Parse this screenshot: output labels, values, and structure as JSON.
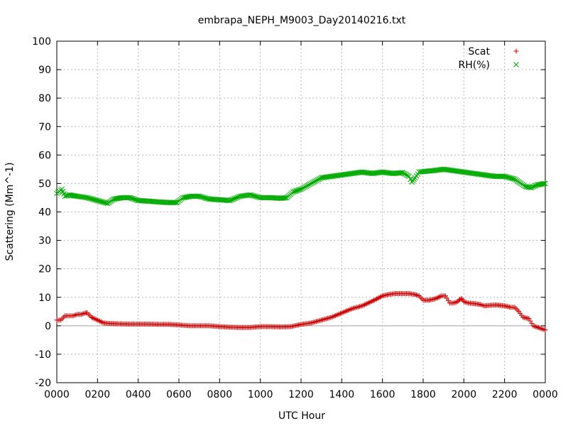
{
  "chart_data": {
    "type": "scatter",
    "title": "embrapa_NEPH_M9003_Day20140216.txt",
    "xlabel": "UTC Hour",
    "ylabel": "Scattering (Mm^-1)",
    "xlim": [
      0,
      24
    ],
    "ylim": [
      -20,
      100
    ],
    "grid": true,
    "legend_position": "top-right",
    "x_ticks": [
      {
        "value": 0,
        "label": "0000"
      },
      {
        "value": 2,
        "label": "0200"
      },
      {
        "value": 4,
        "label": "0400"
      },
      {
        "value": 6,
        "label": "0600"
      },
      {
        "value": 8,
        "label": "0800"
      },
      {
        "value": 10,
        "label": "1000"
      },
      {
        "value": 12,
        "label": "1200"
      },
      {
        "value": 14,
        "label": "1400"
      },
      {
        "value": 16,
        "label": "1600"
      },
      {
        "value": 18,
        "label": "1800"
      },
      {
        "value": 20,
        "label": "2000"
      },
      {
        "value": 22,
        "label": "2200"
      },
      {
        "value": 24,
        "label": "0000"
      }
    ],
    "y_ticks": [
      -20,
      -10,
      0,
      10,
      20,
      30,
      40,
      50,
      60,
      70,
      80,
      90,
      100
    ],
    "series": [
      {
        "name": "Scat",
        "marker": "plus",
        "color": "#cc0000",
        "points": [
          [
            0.0,
            2.0
          ],
          [
            0.2,
            2.0
          ],
          [
            0.4,
            3.5
          ],
          [
            0.6,
            3.5
          ],
          [
            0.8,
            3.5
          ],
          [
            1.0,
            4.0
          ],
          [
            1.2,
            4.0
          ],
          [
            1.4,
            4.5
          ],
          [
            1.5,
            4.5
          ],
          [
            1.7,
            3.0
          ],
          [
            2.0,
            2.0
          ],
          [
            2.3,
            1.0
          ],
          [
            2.6,
            0.8
          ],
          [
            3.0,
            0.7
          ],
          [
            3.5,
            0.6
          ],
          [
            4.0,
            0.6
          ],
          [
            4.5,
            0.6
          ],
          [
            5.0,
            0.5
          ],
          [
            5.5,
            0.5
          ],
          [
            6.0,
            0.3
          ],
          [
            6.5,
            0.0
          ],
          [
            7.0,
            0.0
          ],
          [
            7.5,
            0.0
          ],
          [
            8.0,
            -0.3
          ],
          [
            8.5,
            -0.5
          ],
          [
            9.0,
            -0.6
          ],
          [
            9.5,
            -0.6
          ],
          [
            10.0,
            -0.3
          ],
          [
            10.5,
            -0.3
          ],
          [
            11.0,
            -0.4
          ],
          [
            11.5,
            -0.3
          ],
          [
            12.0,
            0.5
          ],
          [
            12.5,
            1.0
          ],
          [
            13.0,
            2.0
          ],
          [
            13.5,
            3.0
          ],
          [
            14.0,
            4.5
          ],
          [
            14.5,
            6.0
          ],
          [
            15.0,
            7.0
          ],
          [
            15.3,
            8.0
          ],
          [
            15.6,
            9.0
          ],
          [
            16.0,
            10.5
          ],
          [
            16.3,
            11.0
          ],
          [
            16.6,
            11.3
          ],
          [
            17.0,
            11.3
          ],
          [
            17.3,
            11.3
          ],
          [
            17.6,
            11.0
          ],
          [
            17.8,
            10.5
          ],
          [
            18.0,
            9.0
          ],
          [
            18.3,
            9.0
          ],
          [
            18.6,
            9.5
          ],
          [
            18.9,
            10.5
          ],
          [
            19.1,
            10.5
          ],
          [
            19.3,
            8.0
          ],
          [
            19.5,
            8.0
          ],
          [
            19.7,
            8.5
          ],
          [
            19.8,
            9.3
          ],
          [
            19.9,
            9.5
          ],
          [
            20.0,
            8.5
          ],
          [
            20.2,
            8.0
          ],
          [
            20.5,
            7.8
          ],
          [
            20.8,
            7.5
          ],
          [
            21.0,
            7.0
          ],
          [
            21.3,
            7.2
          ],
          [
            21.6,
            7.3
          ],
          [
            22.0,
            7.0
          ],
          [
            22.3,
            6.5
          ],
          [
            22.5,
            6.5
          ],
          [
            22.7,
            5.0
          ],
          [
            22.9,
            3.0
          ],
          [
            23.2,
            2.5
          ],
          [
            23.4,
            0.0
          ],
          [
            23.6,
            -0.5
          ],
          [
            23.8,
            -1.0
          ],
          [
            24.0,
            -1.5
          ]
        ]
      },
      {
        "name": "RH(%)",
        "marker": "cross",
        "color": "#00aa00",
        "points": [
          [
            0.0,
            46.5
          ],
          [
            0.25,
            48.0
          ],
          [
            0.4,
            45.5
          ],
          [
            0.6,
            46.0
          ],
          [
            1.0,
            45.5
          ],
          [
            1.5,
            45.0
          ],
          [
            2.0,
            44.0
          ],
          [
            2.5,
            43.0
          ],
          [
            2.8,
            44.5
          ],
          [
            3.2,
            45.0
          ],
          [
            3.6,
            45.0
          ],
          [
            4.0,
            44.0
          ],
          [
            4.5,
            43.8
          ],
          [
            5.0,
            43.5
          ],
          [
            5.5,
            43.3
          ],
          [
            5.9,
            43.3
          ],
          [
            6.2,
            45.0
          ],
          [
            6.6,
            45.5
          ],
          [
            7.0,
            45.5
          ],
          [
            7.5,
            44.5
          ],
          [
            8.0,
            44.3
          ],
          [
            8.5,
            44.0
          ],
          [
            9.0,
            45.5
          ],
          [
            9.5,
            46.0
          ],
          [
            10.0,
            45.0
          ],
          [
            10.5,
            45.0
          ],
          [
            11.0,
            44.8
          ],
          [
            11.3,
            45.0
          ],
          [
            11.6,
            47.0
          ],
          [
            12.0,
            48.0
          ],
          [
            12.5,
            50.0
          ],
          [
            13.0,
            52.0
          ],
          [
            13.5,
            52.5
          ],
          [
            14.0,
            53.0
          ],
          [
            14.5,
            53.5
          ],
          [
            15.0,
            54.0
          ],
          [
            15.5,
            53.5
          ],
          [
            16.0,
            54.0
          ],
          [
            16.5,
            53.5
          ],
          [
            17.0,
            53.8
          ],
          [
            17.3,
            52.5
          ],
          [
            17.45,
            50.5
          ],
          [
            17.6,
            52.0
          ],
          [
            17.8,
            54.0
          ],
          [
            18.0,
            54.2
          ],
          [
            18.5,
            54.5
          ],
          [
            19.0,
            55.0
          ],
          [
            19.5,
            54.5
          ],
          [
            20.0,
            54.0
          ],
          [
            20.5,
            53.5
          ],
          [
            21.0,
            53.0
          ],
          [
            21.5,
            52.5
          ],
          [
            22.0,
            52.5
          ],
          [
            22.5,
            51.5
          ],
          [
            23.0,
            49.0
          ],
          [
            23.3,
            48.5
          ],
          [
            23.6,
            49.5
          ],
          [
            24.0,
            50.0
          ]
        ]
      }
    ]
  }
}
